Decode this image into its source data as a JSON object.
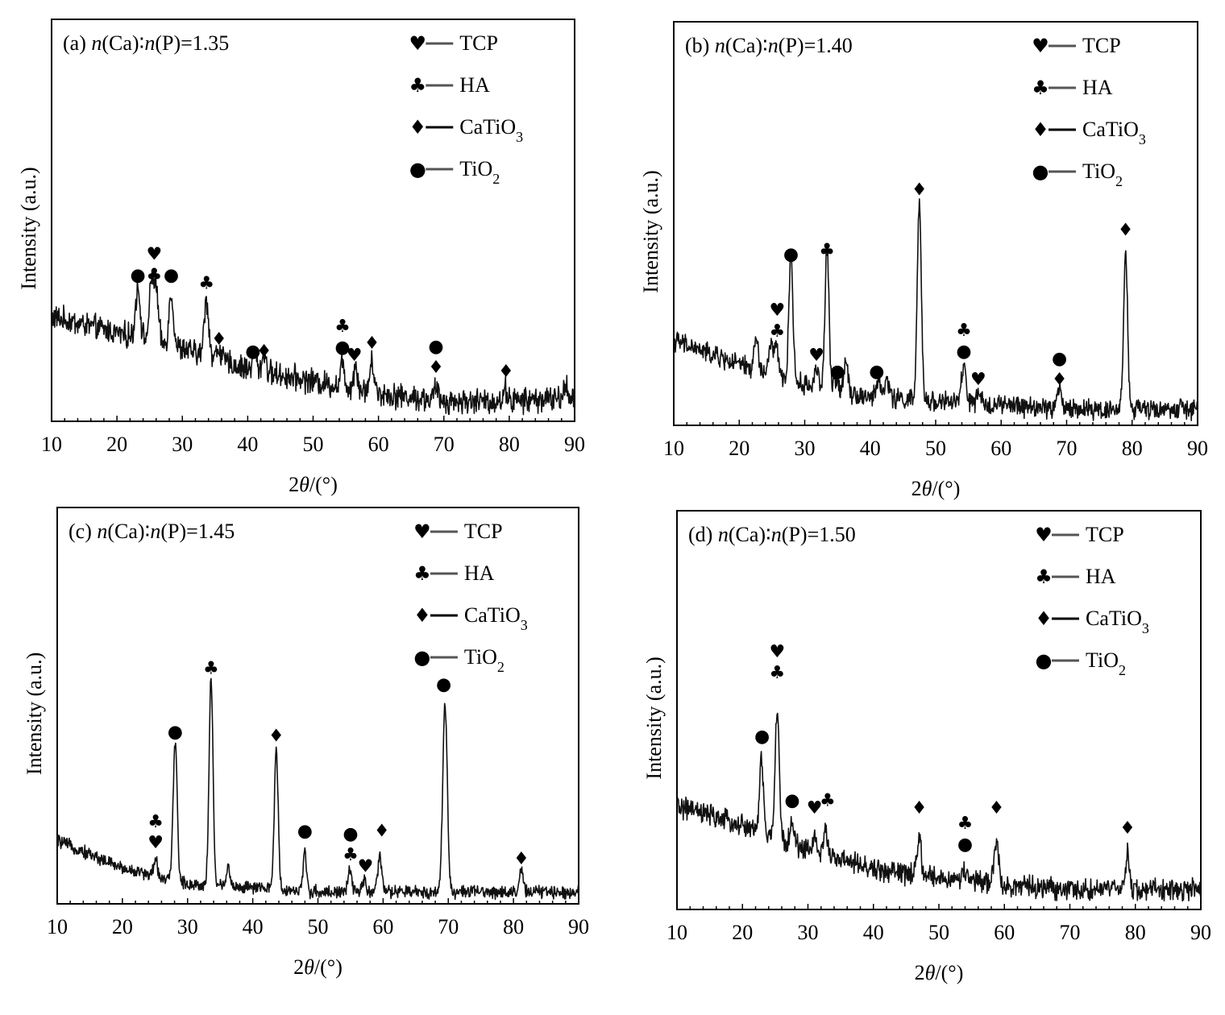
{
  "chart_data": [
    {
      "type": "line",
      "panel": "a",
      "title": "(a)  n(Ca)∶n(P)=1.35",
      "xlabel": "2θ/(°)",
      "ylabel": "Intensity (a.u.)",
      "xlim": [
        10,
        90
      ],
      "ylim": [
        0,
        100
      ],
      "xticks": [
        10,
        20,
        30,
        40,
        50,
        60,
        70,
        80,
        90
      ],
      "legend": {
        "position": "top-right",
        "entries": [
          {
            "label": "TCP",
            "glyph": "♥"
          },
          {
            "label": "HA",
            "glyph": "♣"
          },
          {
            "label": "CaTiO3",
            "glyph": "♦"
          },
          {
            "label": "TiO2",
            "glyph": "●"
          }
        ]
      },
      "background": [
        [
          10,
          26
        ],
        [
          20,
          22
        ],
        [
          30,
          18
        ],
        [
          40,
          13
        ],
        [
          50,
          10
        ],
        [
          60,
          7
        ],
        [
          70,
          5
        ],
        [
          80,
          5
        ],
        [
          90,
          6
        ]
      ],
      "noise": 2.5,
      "peaks": [
        {
          "x": 23.2,
          "h": 13,
          "w": 0.35
        },
        {
          "x": 25.3,
          "h": 14,
          "w": 0.35
        },
        {
          "x": 26.0,
          "h": 12,
          "w": 0.35
        },
        {
          "x": 28.3,
          "h": 13,
          "w": 0.35
        },
        {
          "x": 33.7,
          "h": 14,
          "w": 0.35
        },
        {
          "x": 35.6,
          "h": 3,
          "w": 0.35
        },
        {
          "x": 41.0,
          "h": 5,
          "w": 0.3
        },
        {
          "x": 42.5,
          "h": 5,
          "w": 0.3
        },
        {
          "x": 54.5,
          "h": 6,
          "w": 0.3
        },
        {
          "x": 56.5,
          "h": 6,
          "w": 0.3
        },
        {
          "x": 59.0,
          "h": 7,
          "w": 0.35
        },
        {
          "x": 68.8,
          "h": 3,
          "w": 0.3
        },
        {
          "x": 79.5,
          "h": 3,
          "w": 0.3
        },
        {
          "x": 88.7,
          "h": 3,
          "w": 0.3
        }
      ],
      "markers": [
        {
          "x": 23.2,
          "y": 35,
          "glyphs": [
            "●"
          ]
        },
        {
          "x": 25.7,
          "y": 35,
          "glyphs": [
            "♣",
            "♥"
          ]
        },
        {
          "x": 28.3,
          "y": 35,
          "glyphs": [
            "●"
          ]
        },
        {
          "x": 33.7,
          "y": 33,
          "glyphs": [
            "♣"
          ]
        },
        {
          "x": 35.6,
          "y": 19,
          "glyphs": [
            "♦"
          ]
        },
        {
          "x": 40.8,
          "y": 16,
          "glyphs": [
            "●"
          ]
        },
        {
          "x": 42.5,
          "y": 16,
          "glyphs": [
            "♦"
          ]
        },
        {
          "x": 54.5,
          "y": 17,
          "glyphs": [
            "●",
            "♣"
          ]
        },
        {
          "x": 56.3,
          "y": 15,
          "glyphs": [
            "♥"
          ]
        },
        {
          "x": 59.0,
          "y": 18,
          "glyphs": [
            "♦"
          ]
        },
        {
          "x": 68.8,
          "y": 12,
          "glyphs": [
            "♦",
            "●"
          ]
        },
        {
          "x": 79.5,
          "y": 11,
          "glyphs": [
            "♦"
          ]
        }
      ]
    },
    {
      "type": "line",
      "panel": "b",
      "title": "(b)  n(Ca)∶n(P)=1.40",
      "xlabel": "2θ/(°)",
      "ylabel": "Intensity (a.u.)",
      "xlim": [
        10,
        90
      ],
      "ylim": [
        0,
        100
      ],
      "xticks": [
        10,
        20,
        30,
        40,
        50,
        60,
        70,
        80,
        90
      ],
      "legend": {
        "position": "top-right",
        "entries": [
          {
            "label": "TCP",
            "glyph": "♥"
          },
          {
            "label": "HA",
            "glyph": "♣"
          },
          {
            "label": "CaTiO3",
            "glyph": "♦"
          },
          {
            "label": "TiO2",
            "glyph": "●"
          }
        ]
      },
      "background": [
        [
          10,
          21
        ],
        [
          20,
          15
        ],
        [
          30,
          10
        ],
        [
          40,
          7
        ],
        [
          50,
          6
        ],
        [
          60,
          5
        ],
        [
          70,
          4
        ],
        [
          80,
          4
        ],
        [
          90,
          4
        ]
      ],
      "noise": 2.0,
      "peaks": [
        {
          "x": 22.6,
          "h": 8,
          "w": 0.3
        },
        {
          "x": 24.8,
          "h": 7,
          "w": 0.3
        },
        {
          "x": 25.6,
          "h": 8,
          "w": 0.3
        },
        {
          "x": 27.9,
          "h": 32,
          "w": 0.3
        },
        {
          "x": 31.8,
          "h": 5,
          "w": 0.3
        },
        {
          "x": 33.4,
          "h": 35,
          "w": 0.3
        },
        {
          "x": 34.8,
          "h": 3,
          "w": 0.3
        },
        {
          "x": 36.3,
          "h": 8,
          "w": 0.35
        },
        {
          "x": 41.3,
          "h": 5,
          "w": 0.3
        },
        {
          "x": 42.6,
          "h": 5,
          "w": 0.3
        },
        {
          "x": 47.5,
          "h": 49,
          "w": 0.3
        },
        {
          "x": 54.3,
          "h": 9,
          "w": 0.35
        },
        {
          "x": 56.5,
          "h": 2,
          "w": 0.3
        },
        {
          "x": 68.9,
          "h": 5,
          "w": 0.35
        },
        {
          "x": 79.0,
          "h": 39,
          "w": 0.3
        }
      ],
      "markers": [
        {
          "x": 25.8,
          "y": 22,
          "glyphs": [
            "♣",
            "♥"
          ]
        },
        {
          "x": 27.9,
          "y": 41,
          "glyphs": [
            "●"
          ]
        },
        {
          "x": 31.8,
          "y": 16,
          "glyphs": [
            "♥"
          ]
        },
        {
          "x": 33.4,
          "y": 42,
          "glyphs": [
            "♣"
          ]
        },
        {
          "x": 35.0,
          "y": 12,
          "glyphs": [
            "●"
          ]
        },
        {
          "x": 41.0,
          "y": 12,
          "glyphs": [
            "●"
          ]
        },
        {
          "x": 47.5,
          "y": 57,
          "glyphs": [
            "♦"
          ]
        },
        {
          "x": 54.3,
          "y": 17,
          "glyphs": [
            "●",
            "♣"
          ]
        },
        {
          "x": 56.5,
          "y": 10,
          "glyphs": [
            "♥"
          ]
        },
        {
          "x": 68.9,
          "y": 10,
          "glyphs": [
            "♦",
            "●"
          ]
        },
        {
          "x": 79.0,
          "y": 47,
          "glyphs": [
            "♦"
          ]
        }
      ]
    },
    {
      "type": "line",
      "panel": "c",
      "title": "(c)  n(Ca)∶n(P)=1.45",
      "xlabel": "2θ/(°)",
      "ylabel": "Intensity (a.u.)",
      "xlim": [
        10,
        90
      ],
      "ylim": [
        0,
        100
      ],
      "xticks": [
        10,
        20,
        30,
        40,
        50,
        60,
        70,
        80,
        90
      ],
      "legend": {
        "position": "top-right",
        "entries": [
          {
            "label": "TCP",
            "glyph": "♥"
          },
          {
            "label": "HA",
            "glyph": "♣"
          },
          {
            "label": "CaTiO3",
            "glyph": "♦"
          },
          {
            "label": "TiO2",
            "glyph": "●"
          }
        ]
      },
      "background": [
        [
          10,
          16
        ],
        [
          20,
          9
        ],
        [
          30,
          5
        ],
        [
          40,
          4
        ],
        [
          50,
          3
        ],
        [
          60,
          3
        ],
        [
          70,
          3
        ],
        [
          80,
          3
        ],
        [
          90,
          3
        ]
      ],
      "noise": 1.3,
      "peaks": [
        {
          "x": 25.1,
          "h": 4,
          "w": 0.3
        },
        {
          "x": 28.1,
          "h": 36,
          "w": 0.3
        },
        {
          "x": 33.6,
          "h": 52,
          "w": 0.3
        },
        {
          "x": 36.2,
          "h": 5,
          "w": 0.3
        },
        {
          "x": 43.6,
          "h": 35,
          "w": 0.3
        },
        {
          "x": 48.0,
          "h": 10,
          "w": 0.25
        },
        {
          "x": 54.9,
          "h": 5,
          "w": 0.3
        },
        {
          "x": 57.1,
          "h": 3,
          "w": 0.3
        },
        {
          "x": 59.5,
          "h": 9,
          "w": 0.3
        },
        {
          "x": 69.5,
          "h": 47,
          "w": 0.35
        },
        {
          "x": 81.2,
          "h": 5,
          "w": 0.3
        }
      ],
      "markers": [
        {
          "x": 25.1,
          "y": 14,
          "glyphs": [
            "♥",
            "♣"
          ]
        },
        {
          "x": 28.1,
          "y": 42,
          "glyphs": [
            "●"
          ]
        },
        {
          "x": 33.6,
          "y": 58,
          "glyphs": [
            "♣"
          ]
        },
        {
          "x": 43.6,
          "y": 41,
          "glyphs": [
            "♦"
          ]
        },
        {
          "x": 48.0,
          "y": 17,
          "glyphs": [
            "●"
          ]
        },
        {
          "x": 55.0,
          "y": 11,
          "glyphs": [
            "♣",
            "●"
          ]
        },
        {
          "x": 57.3,
          "y": 8,
          "glyphs": [
            "♥"
          ]
        },
        {
          "x": 59.8,
          "y": 17,
          "glyphs": [
            "♦"
          ]
        },
        {
          "x": 69.3,
          "y": 54,
          "glyphs": [
            "●"
          ]
        },
        {
          "x": 81.2,
          "y": 10,
          "glyphs": [
            "♦"
          ]
        }
      ]
    },
    {
      "type": "line",
      "panel": "d",
      "title": "(d)  n(Ca)∶n(P)=1.50",
      "xlabel": "2θ/(°)",
      "ylabel": "Intensity (a.u.)",
      "xlim": [
        10,
        90
      ],
      "ylim": [
        0,
        100
      ],
      "xticks": [
        10,
        20,
        30,
        40,
        50,
        60,
        70,
        80,
        90
      ],
      "legend": {
        "position": "top-right",
        "entries": [
          {
            "label": "TCP",
            "glyph": "♥"
          },
          {
            "label": "HA",
            "glyph": "♣"
          },
          {
            "label": "CaTiO3",
            "glyph": "♦"
          },
          {
            "label": "TiO2",
            "glyph": "●"
          }
        ]
      },
      "background": [
        [
          10,
          26
        ],
        [
          20,
          21
        ],
        [
          30,
          15
        ],
        [
          40,
          10
        ],
        [
          50,
          8
        ],
        [
          60,
          6
        ],
        [
          70,
          5
        ],
        [
          80,
          5
        ],
        [
          90,
          5
        ]
      ],
      "noise": 2.2,
      "peaks": [
        {
          "x": 22.9,
          "h": 18,
          "w": 0.3
        },
        {
          "x": 25.3,
          "h": 33,
          "w": 0.3
        },
        {
          "x": 27.6,
          "h": 5,
          "w": 0.3
        },
        {
          "x": 31.0,
          "h": 4,
          "w": 0.3
        },
        {
          "x": 32.8,
          "h": 6,
          "w": 0.3
        },
        {
          "x": 47.0,
          "h": 9,
          "w": 0.3
        },
        {
          "x": 54.0,
          "h": 3,
          "w": 0.3
        },
        {
          "x": 58.8,
          "h": 10,
          "w": 0.4
        },
        {
          "x": 78.8,
          "h": 9,
          "w": 0.3
        }
      ],
      "markers": [
        {
          "x": 23.0,
          "y": 42,
          "glyphs": [
            "●"
          ]
        },
        {
          "x": 25.3,
          "y": 58,
          "glyphs": [
            "♣",
            "♥"
          ]
        },
        {
          "x": 27.6,
          "y": 26,
          "glyphs": [
            "●"
          ]
        },
        {
          "x": 31.0,
          "y": 24,
          "glyphs": [
            "♥"
          ]
        },
        {
          "x": 33.0,
          "y": 26,
          "glyphs": [
            "♣"
          ]
        },
        {
          "x": 47.0,
          "y": 24,
          "glyphs": [
            "♦"
          ]
        },
        {
          "x": 54.0,
          "y": 15,
          "glyphs": [
            "●",
            "♣"
          ]
        },
        {
          "x": 58.8,
          "y": 24,
          "glyphs": [
            "♦"
          ]
        },
        {
          "x": 78.8,
          "y": 19,
          "glyphs": [
            "♦"
          ]
        }
      ]
    }
  ]
}
